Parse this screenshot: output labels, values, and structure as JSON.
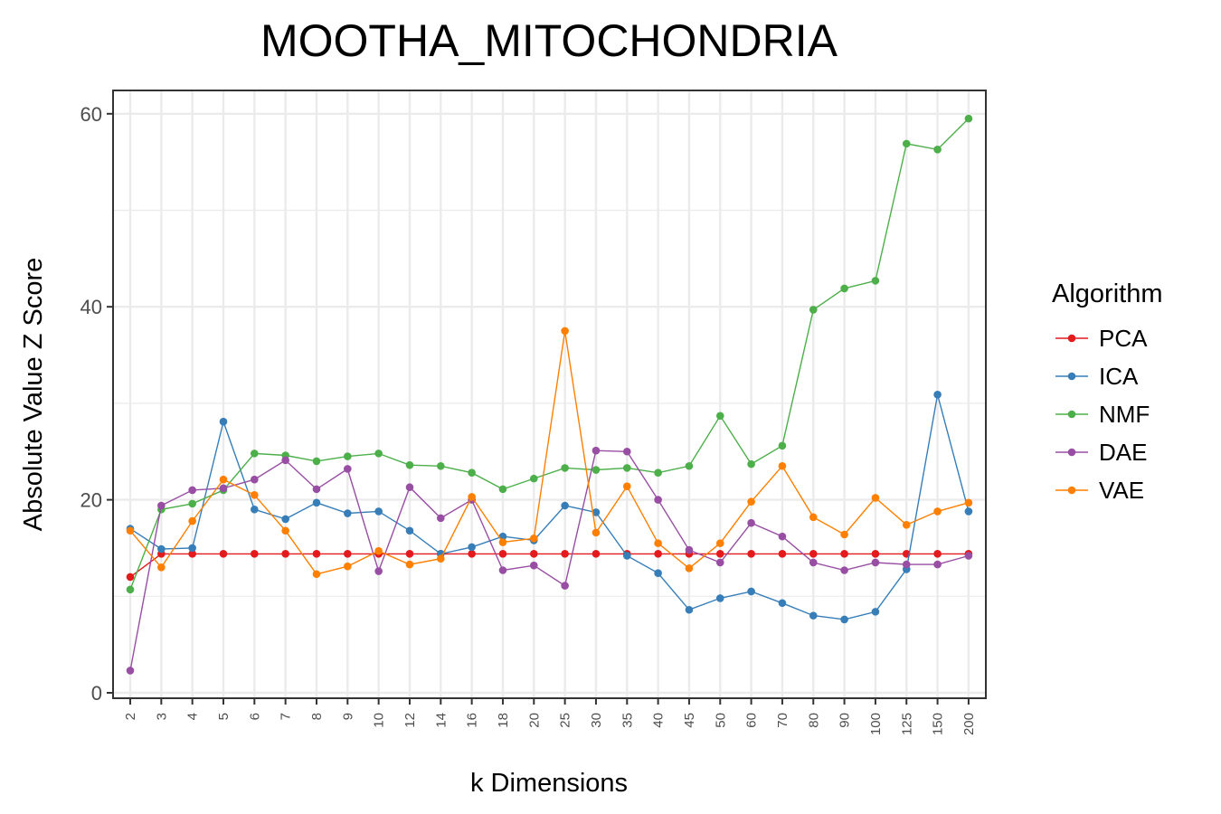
{
  "chart_data": {
    "type": "line",
    "title": "MOOTHA_MITOCHONDRIA",
    "xlabel": "k Dimensions",
    "ylabel": "Absolute Value Z Score",
    "categories": [
      "2",
      "3",
      "4",
      "5",
      "6",
      "7",
      "8",
      "9",
      "10",
      "12",
      "14",
      "16",
      "18",
      "20",
      "25",
      "30",
      "35",
      "40",
      "45",
      "50",
      "60",
      "70",
      "80",
      "90",
      "100",
      "125",
      "150",
      "200"
    ],
    "ylim": [
      0,
      62
    ],
    "yticks": [
      0,
      20,
      40,
      60
    ],
    "legend_title": "Algorithm",
    "legend_position": "right",
    "grid": true,
    "series": [
      {
        "name": "PCA",
        "color": "#e41a1c",
        "values": [
          12.0,
          14.4,
          14.4,
          14.4,
          14.4,
          14.4,
          14.4,
          14.4,
          14.4,
          14.4,
          14.4,
          14.4,
          14.4,
          14.4,
          14.4,
          14.4,
          14.4,
          14.4,
          14.4,
          14.4,
          14.4,
          14.4,
          14.4,
          14.4,
          14.4,
          14.4,
          14.4,
          14.4
        ]
      },
      {
        "name": "ICA",
        "color": "#377eb8",
        "values": [
          17.0,
          14.9,
          15.0,
          28.1,
          19.0,
          18.0,
          19.7,
          18.6,
          18.8,
          16.8,
          14.4,
          15.1,
          16.2,
          15.8,
          19.4,
          18.7,
          14.2,
          12.4,
          8.6,
          9.8,
          10.5,
          9.3,
          8.0,
          7.6,
          8.4,
          12.8,
          30.9,
          18.8
        ]
      },
      {
        "name": "NMF",
        "color": "#4daf4a",
        "values": [
          10.7,
          19.0,
          19.6,
          21.0,
          24.8,
          24.6,
          24.0,
          24.5,
          24.8,
          23.6,
          23.5,
          22.8,
          21.1,
          22.2,
          23.3,
          23.1,
          23.3,
          22.8,
          23.5,
          28.7,
          23.7,
          25.6,
          39.7,
          41.9,
          42.7,
          56.9,
          56.3,
          59.5
        ]
      },
      {
        "name": "DAE",
        "color": "#984ea3",
        "values": [
          2.3,
          19.4,
          21.0,
          21.2,
          22.1,
          24.1,
          21.1,
          23.2,
          12.6,
          21.3,
          18.1,
          20.0,
          12.7,
          13.2,
          11.1,
          25.1,
          25.0,
          20.0,
          14.8,
          13.5,
          17.6,
          16.2,
          13.5,
          12.7,
          13.5,
          13.3,
          13.3,
          14.2
        ]
      },
      {
        "name": "VAE",
        "color": "#ff7f00",
        "values": [
          16.8,
          13.0,
          17.8,
          22.1,
          20.5,
          16.8,
          12.3,
          13.1,
          14.7,
          13.3,
          13.9,
          20.3,
          15.6,
          16.0,
          37.5,
          16.6,
          21.4,
          15.5,
          12.9,
          15.5,
          19.8,
          23.5,
          18.2,
          16.4,
          20.2,
          17.4,
          18.8,
          19.7
        ]
      }
    ]
  }
}
